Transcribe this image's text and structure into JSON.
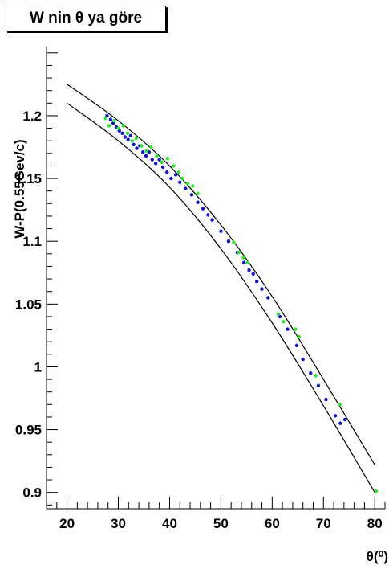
{
  "chart_data": {
    "type": "scatter",
    "title": "W nin θ ya göre",
    "xlabel": "θ(⁰)",
    "ylabel": "W-P(0.55Gev/c)",
    "xlim": [
      16,
      82
    ],
    "ylim": [
      0.887,
      1.255
    ],
    "x_ticks": [
      "20",
      "30",
      "40",
      "50",
      "60",
      "70",
      "80"
    ],
    "y_ticks": [
      "0.9",
      "0.95",
      "1",
      "1.05",
      "1.1",
      "1.15",
      "1.2"
    ],
    "grid": false,
    "legend": "none",
    "colors": {
      "series_blue": "#1010dd",
      "series_green": "#22ee22",
      "curves": "#000000"
    },
    "curves": [
      {
        "points": [
          [
            20,
            1.225
          ],
          [
            30,
            1.196
          ],
          [
            40,
            1.16
          ],
          [
            50,
            1.113
          ],
          [
            60,
            1.056
          ],
          [
            70,
            0.99
          ],
          [
            80,
            0.922
          ]
        ]
      },
      {
        "points": [
          [
            20,
            1.21
          ],
          [
            30,
            1.18
          ],
          [
            40,
            1.143
          ],
          [
            50,
            1.094
          ],
          [
            60,
            1.035
          ],
          [
            70,
            0.969
          ],
          [
            80,
            0.9
          ]
        ]
      }
    ],
    "series": [
      {
        "color": "#1010dd",
        "points": [
          [
            27.8,
            1.2
          ],
          [
            28.5,
            1.197
          ],
          [
            29.0,
            1.194
          ],
          [
            29.6,
            1.191
          ],
          [
            30.2,
            1.188
          ],
          [
            30.8,
            1.186
          ],
          [
            31.3,
            1.183
          ],
          [
            31.9,
            1.181
          ],
          [
            32.4,
            1.184
          ],
          [
            33.0,
            1.177
          ],
          [
            33.6,
            1.174
          ],
          [
            34.2,
            1.176
          ],
          [
            34.8,
            1.171
          ],
          [
            35.4,
            1.168
          ],
          [
            36.0,
            1.171
          ],
          [
            36.6,
            1.165
          ],
          [
            37.3,
            1.162
          ],
          [
            38.0,
            1.165
          ],
          [
            38.7,
            1.159
          ],
          [
            39.5,
            1.155
          ],
          [
            40.3,
            1.15
          ],
          [
            41.2,
            1.153
          ],
          [
            42.0,
            1.147
          ],
          [
            43.1,
            1.142
          ],
          [
            44.3,
            1.137
          ],
          [
            45.5,
            1.131
          ],
          [
            46.5,
            1.126
          ],
          [
            47.5,
            1.121
          ],
          [
            48.3,
            1.117
          ],
          [
            50.0,
            1.108
          ],
          [
            51.5,
            1.1
          ],
          [
            53.2,
            1.091
          ],
          [
            54.5,
            1.083
          ],
          [
            55.5,
            1.077
          ],
          [
            56.3,
            1.074
          ],
          [
            57.0,
            1.068
          ],
          [
            58.0,
            1.062
          ],
          [
            59.2,
            1.055
          ],
          [
            61.5,
            1.04
          ],
          [
            63.0,
            1.03
          ],
          [
            64.8,
            1.017
          ],
          [
            66.0,
            1.006
          ],
          [
            67.5,
            0.995
          ],
          [
            69.0,
            0.985
          ],
          [
            70.5,
            0.974
          ],
          [
            72.3,
            0.961
          ],
          [
            73.3,
            0.955
          ],
          [
            74.2,
            0.958
          ]
        ]
      },
      {
        "color": "#22ee22",
        "points": [
          [
            27.5,
            1.198
          ],
          [
            28.2,
            1.192
          ],
          [
            29.2,
            1.196
          ],
          [
            30.0,
            1.19
          ],
          [
            31.0,
            1.192
          ],
          [
            31.8,
            1.186
          ],
          [
            32.7,
            1.18
          ],
          [
            33.5,
            1.182
          ],
          [
            34.5,
            1.176
          ],
          [
            35.5,
            1.172
          ],
          [
            36.4,
            1.175
          ],
          [
            37.5,
            1.168
          ],
          [
            38.5,
            1.163
          ],
          [
            39.6,
            1.166
          ],
          [
            40.8,
            1.16
          ],
          [
            41.8,
            1.155
          ],
          [
            42.5,
            1.15
          ],
          [
            43.5,
            1.146
          ],
          [
            44.5,
            1.144
          ],
          [
            45.5,
            1.138
          ],
          [
            52.5,
            1.099
          ],
          [
            53.5,
            1.091
          ],
          [
            54.4,
            1.087
          ],
          [
            55.2,
            1.083
          ],
          [
            61.2,
            1.042
          ],
          [
            62.2,
            1.036
          ],
          [
            64.5,
            1.03
          ],
          [
            65.2,
            1.024
          ],
          [
            68.5,
            0.993
          ],
          [
            73.2,
            0.97
          ],
          [
            80.3,
            0.901
          ]
        ]
      }
    ]
  }
}
